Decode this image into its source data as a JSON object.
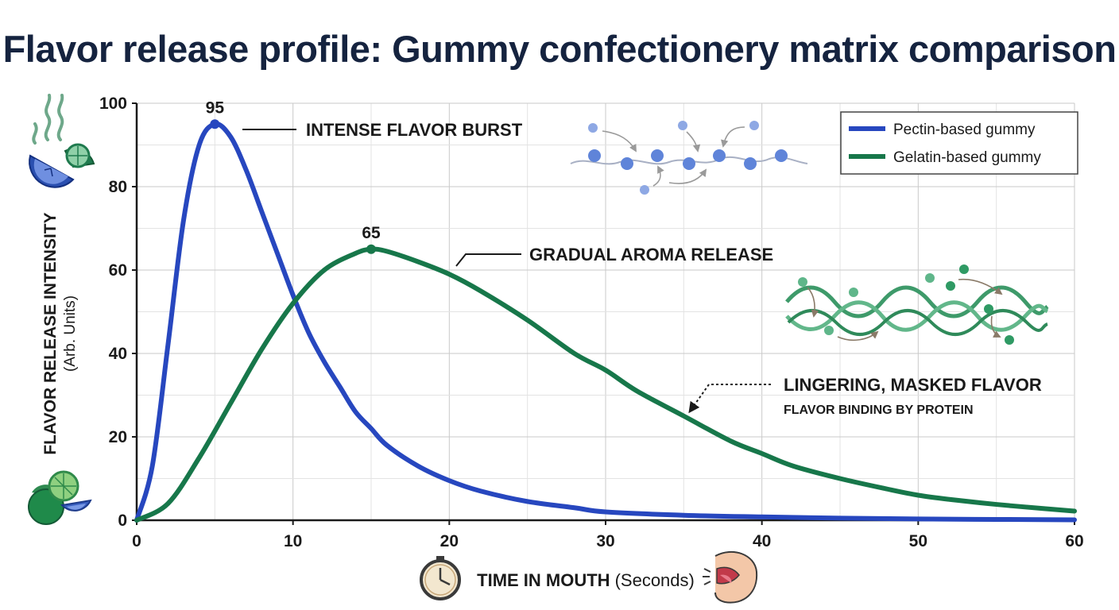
{
  "chart_data": {
    "type": "line",
    "title": "Flavor release profile: Gummy confectionery matrix comparison",
    "xlabel": "TIME IN MOUTH",
    "xlabel_unit": "(Seconds)",
    "ylabel": "FLAVOR RELEASE INTENSITY",
    "ylabel_unit": "(Arb. Units)",
    "xlim": [
      0,
      60
    ],
    "ylim": [
      0,
      100
    ],
    "x_ticks": [
      0,
      10,
      20,
      30,
      40,
      50,
      60
    ],
    "y_ticks": [
      0,
      20,
      40,
      60,
      80,
      100
    ],
    "grid": true,
    "legend_position": "top-right",
    "series": [
      {
        "name": "Pectin-based gummy",
        "color": "#2747bf",
        "x": [
          0,
          1,
          2,
          3,
          4,
          5,
          6,
          7,
          8,
          9,
          10,
          11,
          12,
          13,
          14,
          15,
          16,
          18,
          20,
          22,
          25,
          28,
          30,
          35,
          40,
          45,
          50,
          55,
          60
        ],
        "y": [
          0,
          13,
          42,
          72,
          90,
          95,
          92,
          84,
          74,
          64,
          54,
          45,
          38,
          32,
          26,
          22,
          18,
          13,
          9.5,
          7,
          4.5,
          3,
          2,
          1.2,
          0.8,
          0.5,
          0.3,
          0.2,
          0.1
        ],
        "peak": {
          "x": 5,
          "y": 95,
          "label": "95"
        }
      },
      {
        "name": "Gelatin-based gummy",
        "color": "#17774a",
        "x": [
          0,
          2,
          4,
          6,
          8,
          10,
          12,
          14,
          15,
          16,
          18,
          20,
          22,
          25,
          28,
          30,
          32,
          35,
          38,
          40,
          42,
          45,
          48,
          50,
          52,
          55,
          58,
          60
        ],
        "y": [
          0,
          4,
          15,
          28,
          41,
          52,
          60,
          64,
          65,
          64.5,
          62,
          59,
          55,
          48,
          40,
          36,
          31,
          25,
          19,
          16,
          13,
          10,
          7.5,
          6,
          5,
          3.8,
          2.8,
          2.2
        ],
        "peak": {
          "x": 15,
          "y": 65,
          "label": "65"
        }
      }
    ],
    "annotations": [
      {
        "text": "INTENSE FLAVOR BURST"
      },
      {
        "text": "GRADUAL AROMA RELEASE"
      },
      {
        "text": "LINGERING, MASKED FLAVOR",
        "subtext": "FLAVOR BINDING BY PROTEIN"
      }
    ]
  },
  "icons": {
    "top_left": "citrus-slices-aroma-icon",
    "bottom_left": "lime-fruit-icon",
    "x_axis_left": "stopwatch-icon",
    "x_axis_right": "mouth-tasting-icon",
    "pectin_molecules": "pectin-chain-diagram",
    "gelatin_molecules": "gelatin-helix-diagram"
  }
}
